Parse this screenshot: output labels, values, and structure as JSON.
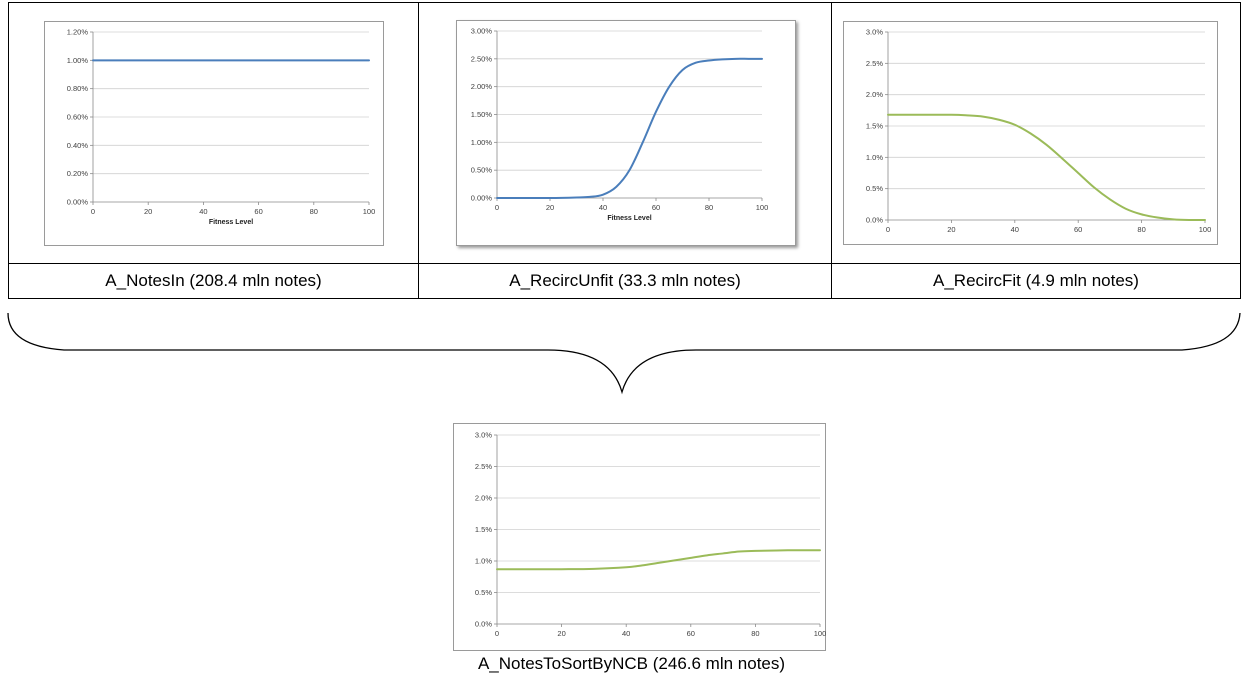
{
  "captions": {
    "notes_in": "A_NotesIn (208.4 mln notes)",
    "recirc_unfit": "A_RecircUnfit (33.3 mln notes)",
    "recirc_fit": "A_RecircFit (4.9 mln notes)",
    "notes_to_sort": "A_NotesToSortByNCB (246.6 mln notes)"
  },
  "chart_data": [
    {
      "id": "notes_in",
      "type": "line",
      "xlabel": "Fitness Level",
      "ylabel": "",
      "xlim": [
        0,
        100
      ],
      "ylim": [
        0,
        1.2
      ],
      "x_ticks": [
        "0",
        "20",
        "40",
        "60",
        "80",
        "100"
      ],
      "y_ticks": [
        "0.00%",
        "0.20%",
        "0.40%",
        "0.60%",
        "0.80%",
        "1.00%",
        "1.20%"
      ],
      "grid": true,
      "series_color": "#4a7ebb",
      "x": [
        0,
        10,
        20,
        30,
        40,
        50,
        60,
        70,
        80,
        90,
        100
      ],
      "y": [
        1.0,
        1.0,
        1.0,
        1.0,
        1.0,
        1.0,
        1.0,
        1.0,
        1.0,
        1.0,
        1.0
      ]
    },
    {
      "id": "recirc_unfit",
      "type": "line",
      "xlabel": "Fitness Level",
      "ylabel": "",
      "xlim": [
        0,
        100
      ],
      "ylim": [
        0,
        3.0
      ],
      "x_ticks": [
        "0",
        "20",
        "40",
        "60",
        "80",
        "100"
      ],
      "y_ticks": [
        "0.00%",
        "0.50%",
        "1.00%",
        "1.50%",
        "2.00%",
        "2.50%",
        "3.00%"
      ],
      "grid": true,
      "series_color": "#4a7ebb",
      "x": [
        0,
        10,
        20,
        30,
        35,
        40,
        45,
        50,
        55,
        60,
        65,
        70,
        75,
        80,
        85,
        90,
        95,
        100
      ],
      "y": [
        0.0,
        0.0,
        0.0,
        0.01,
        0.02,
        0.06,
        0.2,
        0.5,
        1.0,
        1.55,
        2.0,
        2.3,
        2.43,
        2.47,
        2.49,
        2.5,
        2.5,
        2.5
      ]
    },
    {
      "id": "recirc_fit",
      "type": "line",
      "xlabel": "",
      "ylabel": "",
      "xlim": [
        0,
        100
      ],
      "ylim": [
        0,
        3.0
      ],
      "x_ticks": [
        "0",
        "20",
        "40",
        "60",
        "80",
        "100"
      ],
      "y_ticks": [
        "0.0%",
        "0.5%",
        "1.0%",
        "1.5%",
        "2.0%",
        "2.5%",
        "3.0%"
      ],
      "grid": true,
      "series_color": "#9bbb59",
      "x": [
        0,
        10,
        20,
        25,
        30,
        35,
        40,
        45,
        50,
        55,
        60,
        65,
        70,
        75,
        80,
        85,
        90,
        95,
        100
      ],
      "y": [
        1.68,
        1.68,
        1.68,
        1.67,
        1.65,
        1.6,
        1.52,
        1.38,
        1.2,
        0.98,
        0.75,
        0.52,
        0.33,
        0.18,
        0.09,
        0.04,
        0.01,
        0.0,
        0.0
      ]
    },
    {
      "id": "notes_to_sort",
      "type": "line",
      "xlabel": "",
      "ylabel": "",
      "xlim": [
        0,
        100
      ],
      "ylim": [
        0,
        3.0
      ],
      "x_ticks": [
        "0",
        "20",
        "40",
        "60",
        "80",
        "100"
      ],
      "y_ticks": [
        "0.0%",
        "0.5%",
        "1.0%",
        "1.5%",
        "2.0%",
        "2.5%",
        "3.0%"
      ],
      "grid": true,
      "series_color": "#9bbb59",
      "x": [
        0,
        10,
        20,
        30,
        40,
        45,
        50,
        55,
        60,
        65,
        70,
        75,
        80,
        90,
        100
      ],
      "y": [
        0.87,
        0.87,
        0.87,
        0.875,
        0.9,
        0.93,
        0.97,
        1.01,
        1.05,
        1.09,
        1.12,
        1.15,
        1.16,
        1.17,
        1.17
      ]
    }
  ]
}
